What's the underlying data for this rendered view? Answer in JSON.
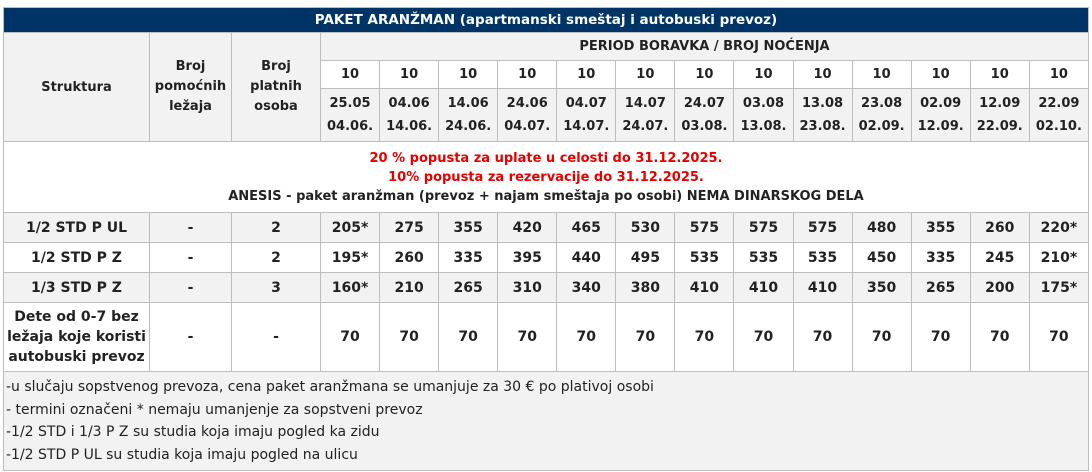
{
  "title": "PAKET ARANŽMAN (apartmanski smeštaj i autobuski prevoz)",
  "headers": {
    "struktura": "Struktura",
    "pomocnih": [
      "Broj",
      "pomoćnih",
      "ležaja"
    ],
    "platnih": [
      "Broj",
      "platnih",
      "osoba"
    ],
    "period": "PERIOD BORAVKA / BROJ NOĆENJA"
  },
  "nights": [
    "10",
    "10",
    "10",
    "10",
    "10",
    "10",
    "10",
    "10",
    "10",
    "10",
    "10",
    "10",
    "10"
  ],
  "dates": [
    [
      "25.05",
      "04.06."
    ],
    [
      "04.06",
      "14.06."
    ],
    [
      "14.06",
      "24.06."
    ],
    [
      "24.06",
      "04.07."
    ],
    [
      "04.07",
      "14.07."
    ],
    [
      "14.07",
      "24.07."
    ],
    [
      "24.07",
      "03.08."
    ],
    [
      "03.08",
      "13.08."
    ],
    [
      "13.08",
      "23.08."
    ],
    [
      "23.08",
      "02.09."
    ],
    [
      "02.09",
      "12.09."
    ],
    [
      "12.09",
      "22.09."
    ],
    [
      "22.09",
      "02.10."
    ]
  ],
  "promo": {
    "line1": "20 % popusta za uplate u celosti do 31.12.2025.",
    "line2": "10% popusta za rezervacije do 31.12.2025.",
    "line3": "ANESIS - paket aranžman (prevoz + najam smeštaja po osobi) NEMA DINARSKOG DELA"
  },
  "rows": [
    {
      "struktura": "1/2 STD P UL",
      "pomocnih": "-",
      "platnih": "2",
      "prices": [
        "205*",
        "275",
        "355",
        "420",
        "465",
        "530",
        "575",
        "575",
        "575",
        "480",
        "355",
        "260",
        "220*"
      ]
    },
    {
      "struktura": "1/2 STD P Z",
      "pomocnih": "-",
      "platnih": "2",
      "prices": [
        "195*",
        "260",
        "335",
        "395",
        "440",
        "495",
        "535",
        "535",
        "535",
        "450",
        "335",
        "245",
        "210*"
      ]
    },
    {
      "struktura": "1/3 STD P Z",
      "pomocnih": "-",
      "platnih": "3",
      "prices": [
        "160*",
        "210",
        "265",
        "310",
        "340",
        "380",
        "410",
        "410",
        "410",
        "350",
        "265",
        "200",
        "175*"
      ]
    }
  ],
  "child": {
    "struktura": [
      "Dete od 0-7 bez",
      "ležaja koje koristi",
      "autobuski prevoz"
    ],
    "pomocnih": "-",
    "platnih": "-",
    "prices": [
      "70",
      "70",
      "70",
      "70",
      "70",
      "70",
      "70",
      "70",
      "70",
      "70",
      "70",
      "70",
      "70"
    ]
  },
  "notes": [
    "-u slučaju sopstvenog prevoza, cena paket aranžmana se umanjuje za 30 € po plativoj osobi",
    "- termini označeni * nemaju umanjenje za sopstveni prevoz",
    "-1/2 STD i 1/3 P Z su studia koja imaju pogled ka zidu",
    "-1/2 STD P UL su studia koja imaju pogled na ulicu"
  ]
}
